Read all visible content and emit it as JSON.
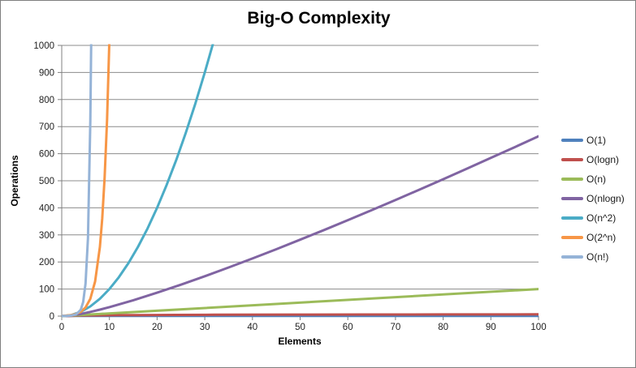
{
  "chart_data": {
    "type": "line",
    "title": "Big-O Complexity",
    "xlabel": "Elements",
    "ylabel": "Operations",
    "xlim": [
      0,
      100
    ],
    "ylim": [
      0,
      1000
    ],
    "x_ticks": [
      0,
      10,
      20,
      30,
      40,
      50,
      60,
      70,
      80,
      90,
      100
    ],
    "y_ticks": [
      0,
      100,
      200,
      300,
      400,
      500,
      600,
      700,
      800,
      900,
      1000
    ],
    "grid": "horizontal",
    "legend_position": "right",
    "background": "#FFFFFF",
    "axis_color": "#808080",
    "gridline_color": "#8C8C8C",
    "series": [
      {
        "name": "O(1)",
        "color": "#4F81BD",
        "formula": "1",
        "points": [
          [
            0,
            1
          ],
          [
            100,
            1
          ]
        ]
      },
      {
        "name": "O(logn)",
        "color": "#C0504D",
        "formula": "log2(n)",
        "points": [
          [
            1,
            0
          ],
          [
            2,
            1
          ],
          [
            3,
            1.6
          ],
          [
            4,
            2
          ],
          [
            6,
            2.6
          ],
          [
            8,
            3
          ],
          [
            12,
            3.6
          ],
          [
            16,
            4
          ],
          [
            24,
            4.6
          ],
          [
            32,
            5
          ],
          [
            48,
            5.6
          ],
          [
            64,
            6
          ],
          [
            80,
            6.3
          ],
          [
            100,
            6.6
          ]
        ]
      },
      {
        "name": "O(n)",
        "color": "#9BBB59",
        "formula": "n",
        "points": [
          [
            0,
            0
          ],
          [
            100,
            100
          ]
        ]
      },
      {
        "name": "O(nlogn)",
        "color": "#8064A2",
        "formula": "n*log2(n)",
        "points": [
          [
            1,
            0
          ],
          [
            2,
            2
          ],
          [
            4,
            8
          ],
          [
            6,
            15.5
          ],
          [
            8,
            24
          ],
          [
            10,
            33.2
          ],
          [
            15,
            58.6
          ],
          [
            20,
            86.4
          ],
          [
            25,
            116.1
          ],
          [
            30,
            147.2
          ],
          [
            35,
            179.5
          ],
          [
            40,
            212.9
          ],
          [
            45,
            247.1
          ],
          [
            50,
            282.2
          ],
          [
            55,
            317.9
          ],
          [
            60,
            354.4
          ],
          [
            65,
            391.4
          ],
          [
            70,
            429
          ],
          [
            75,
            467.2
          ],
          [
            80,
            505.8
          ],
          [
            85,
            544.8
          ],
          [
            90,
            584.3
          ],
          [
            95,
            624.1
          ],
          [
            100,
            664.4
          ]
        ]
      },
      {
        "name": "O(n^2)",
        "color": "#4BACC6",
        "formula": "n^2",
        "points": [
          [
            0,
            0
          ],
          [
            2,
            4
          ],
          [
            4,
            16
          ],
          [
            6,
            36
          ],
          [
            8,
            64
          ],
          [
            10,
            100
          ],
          [
            12,
            144
          ],
          [
            14,
            196
          ],
          [
            16,
            256
          ],
          [
            18,
            324
          ],
          [
            20,
            400
          ],
          [
            22,
            484
          ],
          [
            24,
            576
          ],
          [
            26,
            676
          ],
          [
            28,
            784
          ],
          [
            30,
            900
          ],
          [
            31.7,
            1005
          ]
        ]
      },
      {
        "name": "O(2^n)",
        "color": "#F79646",
        "formula": "2^n",
        "points": [
          [
            0,
            1
          ],
          [
            1,
            2
          ],
          [
            2,
            4
          ],
          [
            3,
            8
          ],
          [
            4,
            16
          ],
          [
            5,
            32
          ],
          [
            6,
            64
          ],
          [
            7,
            128
          ],
          [
            8,
            256
          ],
          [
            8.5,
            362
          ],
          [
            9,
            512
          ],
          [
            9.5,
            724
          ],
          [
            10,
            1024
          ]
        ]
      },
      {
        "name": "O(n!)",
        "color": "#95B3D7",
        "formula": "n!",
        "points": [
          [
            0,
            1
          ],
          [
            1,
            1
          ],
          [
            2,
            2
          ],
          [
            3,
            6
          ],
          [
            4,
            24
          ],
          [
            4.5,
            52
          ],
          [
            5,
            120
          ],
          [
            5.5,
            288
          ],
          [
            6,
            720
          ],
          [
            6.2,
            1050
          ]
        ]
      }
    ]
  }
}
